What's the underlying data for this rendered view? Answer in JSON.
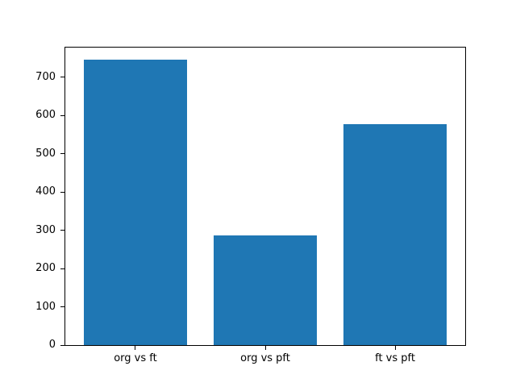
{
  "chart_data": {
    "type": "bar",
    "title": "",
    "xlabel": "",
    "ylabel": "",
    "categories": [
      "org vs ft",
      "org vs pft",
      "ft vs pft"
    ],
    "values": [
      745,
      286,
      578
    ],
    "yticks": [
      0,
      100,
      200,
      300,
      400,
      500,
      600,
      700
    ],
    "ylim": [
      0,
      777
    ],
    "xlim": [
      -0.54,
      2.54
    ],
    "bar_width": 0.8,
    "bar_color": "#1f77b4",
    "axes_background": "#ffffff",
    "figure_background": "#ffffff",
    "grid": false,
    "legend": null
  }
}
